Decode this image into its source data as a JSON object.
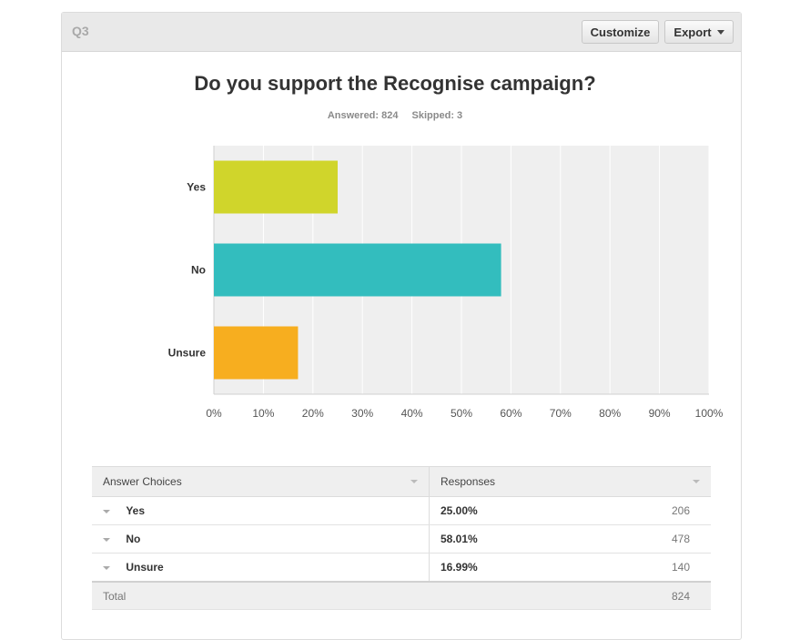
{
  "question": {
    "label": "Q3",
    "title": "Do you support the Recognise campaign?",
    "answered_text": "Answered: 824",
    "skipped_text": "Skipped: 3"
  },
  "toolbar": {
    "customize_label": "Customize",
    "export_label": "Export"
  },
  "chart_data": {
    "type": "bar",
    "orientation": "horizontal",
    "categories": [
      "Yes",
      "No",
      "Unsure"
    ],
    "values": [
      25.0,
      58.01,
      16.99
    ],
    "colors": [
      "#d0d52b",
      "#33bdbe",
      "#f7ae1f"
    ],
    "xlim": [
      0,
      100
    ],
    "xticks": [
      "0%",
      "10%",
      "20%",
      "30%",
      "40%",
      "50%",
      "60%",
      "70%",
      "80%",
      "90%",
      "100%"
    ],
    "grid": true
  },
  "table": {
    "headers": [
      "Answer Choices",
      "Responses"
    ],
    "rows": [
      {
        "choice": "Yes",
        "percent": "25.00%",
        "count": "206"
      },
      {
        "choice": "No",
        "percent": "58.01%",
        "count": "478"
      },
      {
        "choice": "Unsure",
        "percent": "16.99%",
        "count": "140"
      }
    ],
    "total_label": "Total",
    "total_count": "824"
  }
}
